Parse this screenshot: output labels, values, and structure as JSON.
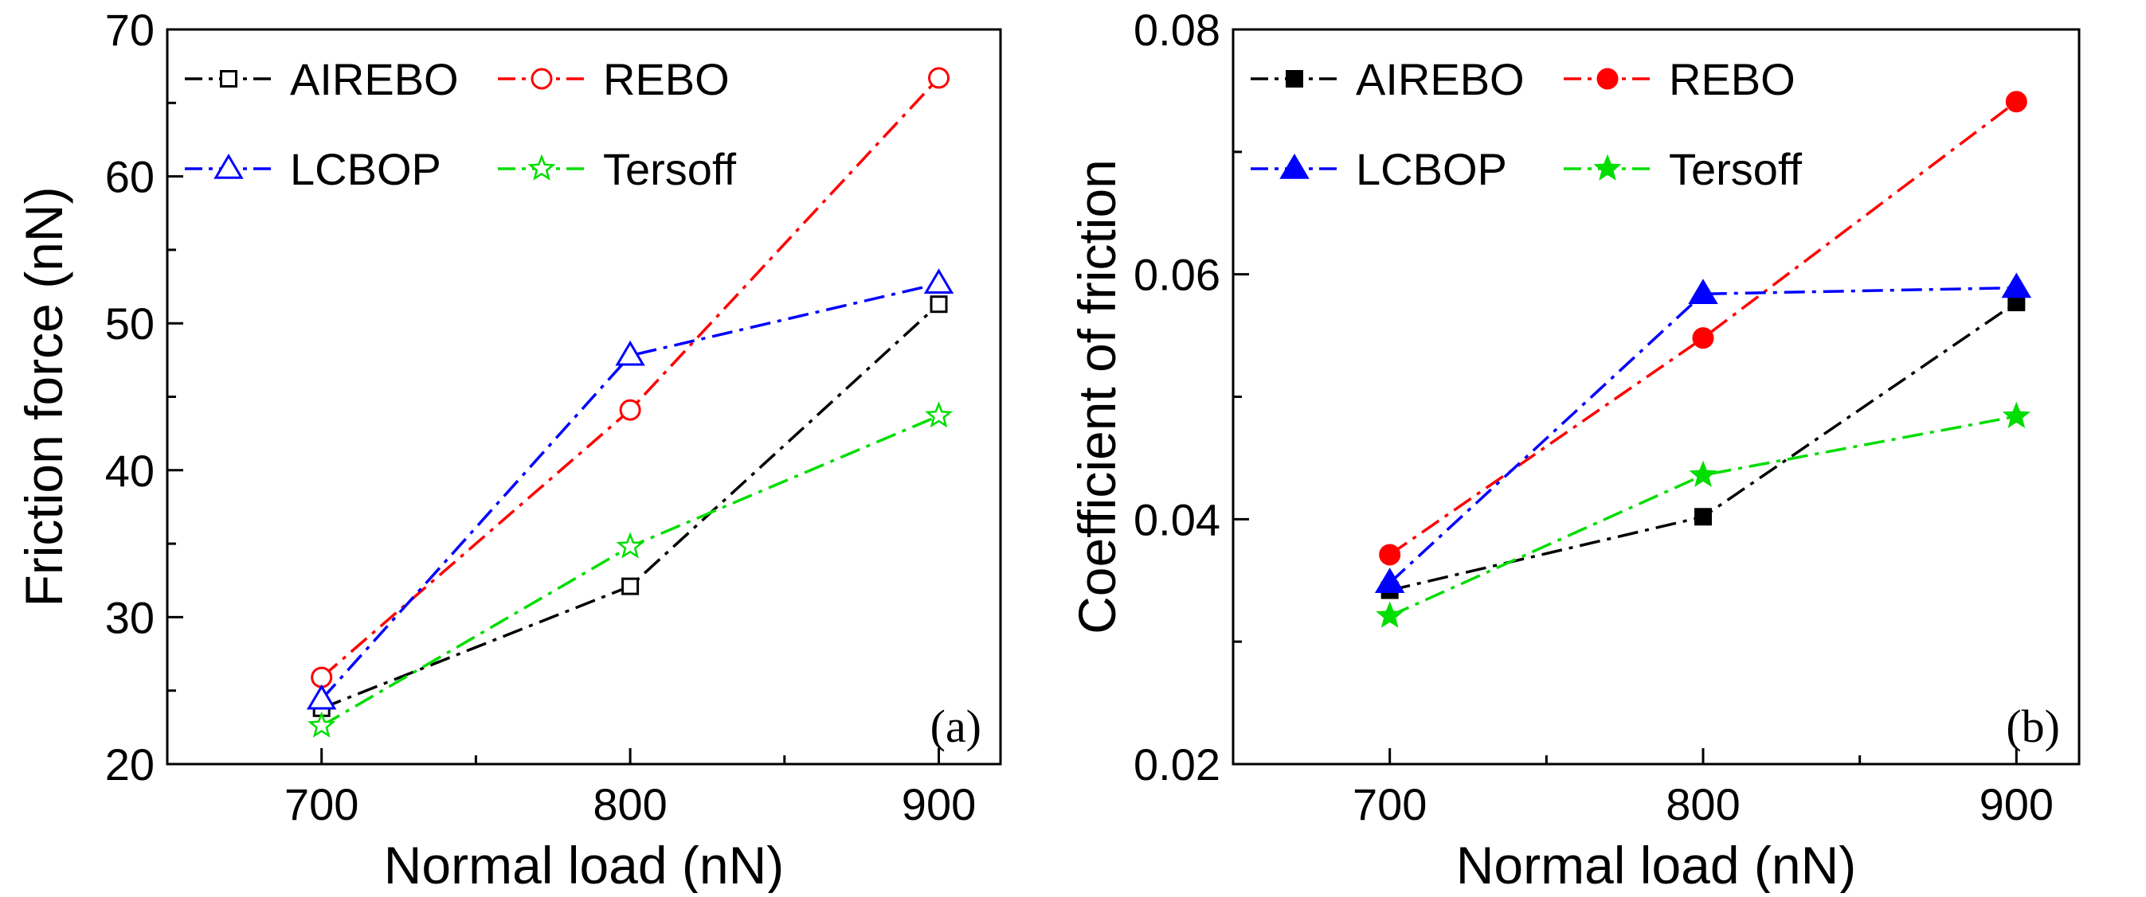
{
  "chart_data": [
    {
      "type": "line",
      "panel_label": "(a)",
      "title": "",
      "xlabel": "Normal load (nN)",
      "ylabel": "Friction force (nN)",
      "x": [
        700,
        800,
        900
      ],
      "xlim": [
        650,
        920
      ],
      "ylim": [
        20,
        70
      ],
      "xticks": [
        700,
        800,
        900
      ],
      "yticks": [
        20,
        30,
        40,
        50,
        60,
        70
      ],
      "xtick_labels": [
        "700",
        "800",
        "900"
      ],
      "ytick_labels": [
        "20",
        "30",
        "40",
        "50",
        "60",
        "70"
      ],
      "legend_position": "top-left",
      "series": [
        {
          "name": "AIREBO",
          "color": "#000000",
          "marker": "square",
          "filled": false,
          "values": [
            23.8,
            32.1,
            51.3
          ]
        },
        {
          "name": "REBO",
          "color": "#ff0000",
          "marker": "circle",
          "filled": false,
          "values": [
            25.9,
            44.1,
            66.7
          ]
        },
        {
          "name": "LCBOP",
          "color": "#0000ff",
          "marker": "triangle",
          "filled": false,
          "values": [
            24.4,
            47.8,
            52.7
          ]
        },
        {
          "name": "Tersoff",
          "color": "#00dd00",
          "marker": "star",
          "filled": false,
          "values": [
            22.6,
            34.8,
            43.7
          ]
        }
      ]
    },
    {
      "type": "line",
      "panel_label": "(b)",
      "title": "",
      "xlabel": "Normal load (nN)",
      "ylabel": "Coefficient of friction",
      "x": [
        700,
        800,
        900
      ],
      "xlim": [
        650,
        920
      ],
      "ylim": [
        0.02,
        0.08
      ],
      "xticks": [
        700,
        800,
        900
      ],
      "yticks": [
        0.02,
        0.04,
        0.06,
        0.08
      ],
      "xtick_labels": [
        "700",
        "800",
        "900"
      ],
      "ytick_labels": [
        "0.02",
        "0.04",
        "0.06",
        "0.08"
      ],
      "legend_position": "top-left",
      "series": [
        {
          "name": "AIREBO",
          "color": "#000000",
          "marker": "square",
          "filled": true,
          "values": [
            0.0342,
            0.0402,
            0.0577
          ]
        },
        {
          "name": "REBO",
          "color": "#ff0000",
          "marker": "circle",
          "filled": true,
          "values": [
            0.0371,
            0.0548,
            0.0741
          ]
        },
        {
          "name": "LCBOP",
          "color": "#0000ff",
          "marker": "triangle",
          "filled": true,
          "values": [
            0.0348,
            0.0584,
            0.0589
          ]
        },
        {
          "name": "Tersoff",
          "color": "#00dd00",
          "marker": "star",
          "filled": true,
          "values": [
            0.0321,
            0.0436,
            0.0484
          ]
        }
      ]
    }
  ]
}
